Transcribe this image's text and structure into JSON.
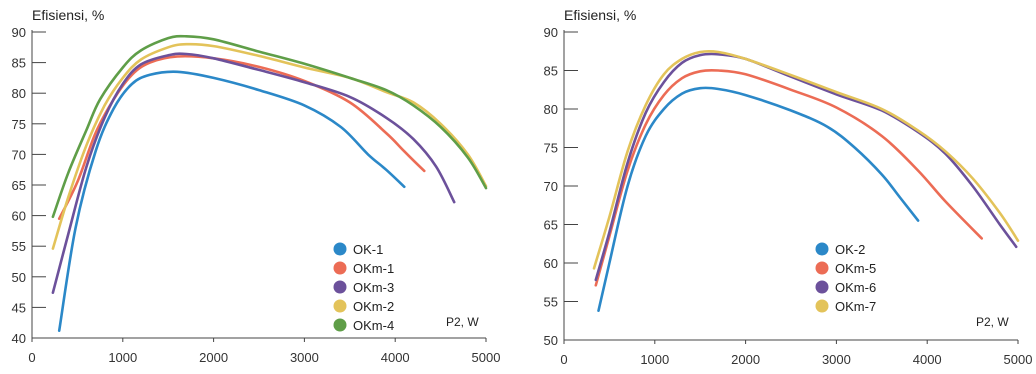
{
  "chart_data": [
    {
      "type": "line",
      "ylabel": "Efisiensi, %",
      "xlabel": "P2, W",
      "xlim": [
        0,
        5000
      ],
      "ylim": [
        40,
        90
      ],
      "xticks": [
        "0",
        "1000",
        "2000",
        "3000",
        "4000",
        "5000"
      ],
      "yticks": [
        "40",
        "45",
        "50",
        "55",
        "60",
        "65",
        "70",
        "75",
        "80",
        "85",
        "90"
      ],
      "grid": false,
      "legend_position": "lower-right",
      "series": [
        {
          "name": "OK-1",
          "color": "#2b88c8",
          "points": [
            [
              300,
              41.2
            ],
            [
              480,
              58
            ],
            [
              700,
              70.5
            ],
            [
              900,
              77.5
            ],
            [
              1100,
              81.5
            ],
            [
              1300,
              83
            ],
            [
              1600,
              83.5
            ],
            [
              2000,
              82.5
            ],
            [
              2500,
              80.5
            ],
            [
              3000,
              78
            ],
            [
              3400,
              74.5
            ],
            [
              3700,
              70
            ],
            [
              3900,
              67.5
            ],
            [
              4100,
              64.7
            ]
          ]
        },
        {
          "name": "OKm-1",
          "color": "#ec6c55",
          "points": [
            [
              300,
              59.5
            ],
            [
              500,
              65.5
            ],
            [
              700,
              73.5
            ],
            [
              900,
              79
            ],
            [
              1100,
              83
            ],
            [
              1300,
              85
            ],
            [
              1600,
              86
            ],
            [
              2000,
              85.7
            ],
            [
              2500,
              84.3
            ],
            [
              3000,
              82
            ],
            [
              3500,
              78.5
            ],
            [
              3900,
              73.5
            ],
            [
              4100,
              70.5
            ],
            [
              4320,
              67.3
            ]
          ]
        },
        {
          "name": "OKm-3",
          "color": "#6c519b",
          "points": [
            [
              230,
              47.4
            ],
            [
              400,
              57
            ],
            [
              600,
              68
            ],
            [
              800,
              76
            ],
            [
              1000,
              81.5
            ],
            [
              1200,
              84.7
            ],
            [
              1500,
              86.2
            ],
            [
              1700,
              86.4
            ],
            [
              2000,
              85.7
            ],
            [
              2500,
              83.8
            ],
            [
              3000,
              81.8
            ],
            [
              3500,
              79.4
            ],
            [
              3900,
              76
            ],
            [
              4200,
              72.5
            ],
            [
              4450,
              68
            ],
            [
              4650,
              62.2
            ]
          ]
        },
        {
          "name": "OKm-2",
          "color": "#e3c35a",
          "points": [
            [
              230,
              54.6
            ],
            [
              400,
              63
            ],
            [
              600,
              71.5
            ],
            [
              800,
              78
            ],
            [
              1000,
              82.5
            ],
            [
              1200,
              85.5
            ],
            [
              1500,
              87.5
            ],
            [
              1700,
              88
            ],
            [
              2000,
              87.7
            ],
            [
              2500,
              86.1
            ],
            [
              3000,
              84.2
            ],
            [
              3500,
              82.5
            ],
            [
              3900,
              80.2
            ],
            [
              4200,
              78.5
            ],
            [
              4500,
              75
            ],
            [
              4800,
              70
            ],
            [
              5000,
              64.8
            ]
          ]
        },
        {
          "name": "OKm-4",
          "color": "#5f9e48",
          "points": [
            [
              230,
              59.8
            ],
            [
              400,
              67
            ],
            [
              600,
              74
            ],
            [
              750,
              79
            ],
            [
              1000,
              84.2
            ],
            [
              1200,
              87
            ],
            [
              1500,
              89
            ],
            [
              1700,
              89.3
            ],
            [
              2000,
              88.8
            ],
            [
              2500,
              86.8
            ],
            [
              3000,
              84.8
            ],
            [
              3500,
              82.5
            ],
            [
              3900,
              80.5
            ],
            [
              4200,
              78
            ],
            [
              4500,
              74.5
            ],
            [
              4800,
              69.5
            ],
            [
              5000,
              64.5
            ]
          ]
        }
      ],
      "legend": [
        "OK-1",
        "OKm-1",
        "OKm-3",
        "OKm-2",
        "OKm-4"
      ]
    },
    {
      "type": "line",
      "ylabel": "Efisiensi, %",
      "xlabel": "P2, W",
      "xlim": [
        0,
        5000
      ],
      "ylim": [
        50,
        90
      ],
      "xticks": [
        "0",
        "1000",
        "2000",
        "3000",
        "4000",
        "5000"
      ],
      "yticks": [
        "50",
        "55",
        "60",
        "65",
        "70",
        "75",
        "80",
        "85",
        "90"
      ],
      "grid": false,
      "legend_position": "lower-right",
      "series": [
        {
          "name": "OK-2",
          "color": "#2b88c8",
          "points": [
            [
              380,
              53.8
            ],
            [
              500,
              60
            ],
            [
              700,
              70
            ],
            [
              900,
              76.5
            ],
            [
              1100,
              80
            ],
            [
              1300,
              82
            ],
            [
              1500,
              82.7
            ],
            [
              1700,
              82.6
            ],
            [
              2000,
              81.8
            ],
            [
              2500,
              79.8
            ],
            [
              2900,
              77.7
            ],
            [
              3200,
              75
            ],
            [
              3500,
              71.5
            ],
            [
              3700,
              68.5
            ],
            [
              3900,
              65.5
            ]
          ]
        },
        {
          "name": "OKm-5",
          "color": "#ec6c55",
          "points": [
            [
              350,
              57.1
            ],
            [
              500,
              63.5
            ],
            [
              700,
              72
            ],
            [
              900,
              78
            ],
            [
              1100,
              81.8
            ],
            [
              1300,
              84
            ],
            [
              1500,
              84.9
            ],
            [
              1700,
              85
            ],
            [
              2000,
              84.5
            ],
            [
              2500,
              82.5
            ],
            [
              3000,
              80.2
            ],
            [
              3500,
              76.5
            ],
            [
              3900,
              72
            ],
            [
              4200,
              68
            ],
            [
              4600,
              63.2
            ]
          ]
        },
        {
          "name": "OKm-6",
          "color": "#6c519b",
          "points": [
            [
              350,
              57.8
            ],
            [
              500,
              64
            ],
            [
              700,
              73
            ],
            [
              900,
              79.5
            ],
            [
              1100,
              83.5
            ],
            [
              1300,
              86
            ],
            [
              1500,
              87
            ],
            [
              1700,
              87.1
            ],
            [
              2000,
              86.5
            ],
            [
              2500,
              84.2
            ],
            [
              3000,
              81.9
            ],
            [
              3500,
              79.8
            ],
            [
              3900,
              77
            ],
            [
              4200,
              74.2
            ],
            [
              4500,
              70
            ],
            [
              4800,
              65
            ],
            [
              4980,
              62.1
            ]
          ]
        },
        {
          "name": "OKm-7",
          "color": "#e3c35a",
          "points": [
            [
              330,
              59.3
            ],
            [
              500,
              66
            ],
            [
              700,
              74.5
            ],
            [
              900,
              80.5
            ],
            [
              1100,
              84.5
            ],
            [
              1300,
              86.5
            ],
            [
              1500,
              87.4
            ],
            [
              1700,
              87.4
            ],
            [
              2000,
              86.5
            ],
            [
              2500,
              84.4
            ],
            [
              3000,
              82.2
            ],
            [
              3500,
              80
            ],
            [
              3900,
              77.2
            ],
            [
              4200,
              74.5
            ],
            [
              4500,
              71
            ],
            [
              4800,
              66.5
            ],
            [
              5000,
              62.9
            ]
          ]
        }
      ],
      "legend": [
        "OK-2",
        "OKm-5",
        "OKm-6",
        "OKm-7"
      ]
    }
  ]
}
